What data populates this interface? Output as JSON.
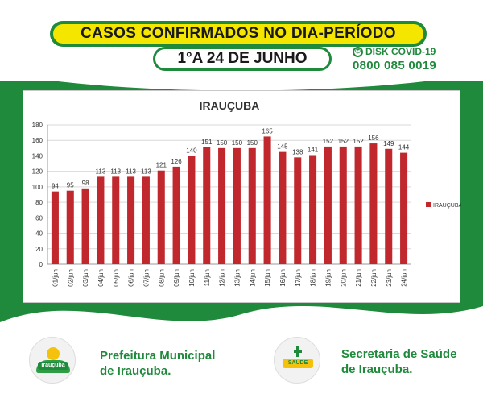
{
  "header": {
    "title": "CASOS CONFIRMADOS NO DIA-PERÍODO",
    "period": "1°A 24 DE JUNHO",
    "disk_label": "DISK COVID-19",
    "disk_number": "0800 085 0019"
  },
  "footer": {
    "left_line1": "Prefeitura Municipal",
    "left_line2": "de Irauçuba.",
    "left_logo_text": "Irauçuba",
    "right_line1": "Secretaria de Saúde",
    "right_line2": "de Irauçuba.",
    "right_logo_text": "SAÚDE"
  },
  "colors": {
    "green": "#1f8a3c",
    "yellow": "#f5e600",
    "bar": "#c0282d"
  },
  "chart_data": {
    "type": "bar",
    "title": "IRAUÇUBA",
    "categories": [
      "01/jun",
      "02/jun",
      "03/jun",
      "04/jun",
      "05/jun",
      "06/jun",
      "07/jun",
      "08/jun",
      "09/jun",
      "10/jun",
      "11/jun",
      "12/jun",
      "13/jun",
      "14/jun",
      "15/jun",
      "16/jun",
      "17/jun",
      "18/jun",
      "19/jun",
      "20/jun",
      "21/jun",
      "22/jun",
      "23/jun",
      "24/jun"
    ],
    "series": [
      {
        "name": "IRAUÇUBA",
        "values": [
          94,
          95,
          98,
          113,
          113,
          113,
          113,
          121,
          126,
          140,
          151,
          150,
          150,
          150,
          165,
          145,
          138,
          141,
          152,
          152,
          152,
          156,
          149,
          144
        ]
      }
    ],
    "ylim": [
      0,
      180
    ],
    "yticks": [
      0,
      20,
      40,
      60,
      80,
      100,
      120,
      140,
      160,
      180
    ],
    "grid": true,
    "legend": "right",
    "xlabel": "",
    "ylabel": ""
  }
}
